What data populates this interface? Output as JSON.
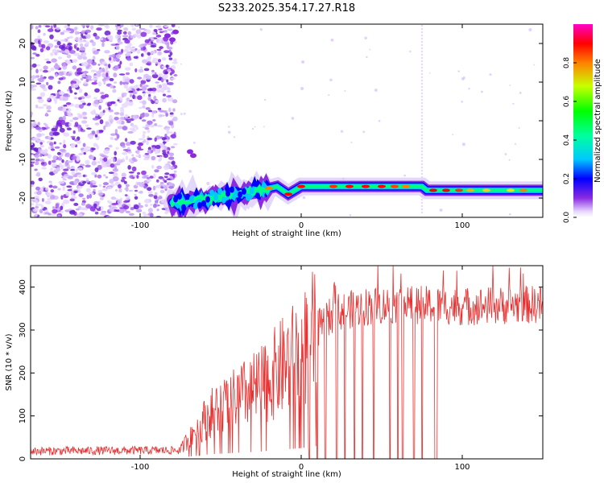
{
  "figure_title": "S233.2025.354.17.27.R18",
  "colors": {
    "snr_line": "#e83030",
    "speckle": "#8a2be2",
    "axis": "#000000"
  },
  "chart_data": [
    {
      "type": "heatmap",
      "title": "S233.2025.354.17.27.R18",
      "xlabel": "Height of straight line (km)",
      "ylabel": "Frequency (Hz)",
      "xlim": [
        -168,
        150
      ],
      "ylim": [
        -25,
        25
      ],
      "xticks": [
        -100,
        0,
        100
      ],
      "yticks": [
        -20,
        -10,
        0,
        10,
        20
      ],
      "colorbar": {
        "label": "Normalized spectral amplitude",
        "range": [
          0,
          1
        ],
        "ticks": [
          0.0,
          0.2,
          0.4,
          0.6,
          0.8
        ],
        "colormap": "hsv-rainbow (white at 0, magenta at 1)"
      },
      "noise_region_end_km": -80,
      "signal_track": {
        "start_km": -80,
        "frequency_hz": [
          {
            "x": -80,
            "y": -21
          },
          {
            "x": -70,
            "y": -21
          },
          {
            "x": -55,
            "y": -20
          },
          {
            "x": -40,
            "y": -19
          },
          {
            "x": -25,
            "y": -18
          },
          {
            "x": -15,
            "y": -17
          },
          {
            "x": -8,
            "y": -19
          },
          {
            "x": 0,
            "y": -17
          },
          {
            "x": 20,
            "y": -17
          },
          {
            "x": 50,
            "y": -17
          },
          {
            "x": 75,
            "y": -17
          },
          {
            "x": 78,
            "y": -18
          },
          {
            "x": 100,
            "y": -18
          },
          {
            "x": 120,
            "y": -18
          },
          {
            "x": 150,
            "y": -18
          }
        ]
      }
    },
    {
      "type": "line",
      "xlabel": "Height of straight line (km)",
      "ylabel": "SNR (10 * v/v)",
      "xlim": [
        -168,
        150
      ],
      "ylim": [
        0,
        450
      ],
      "xticks": [
        -100,
        0,
        100
      ],
      "yticks": [
        0,
        100,
        200,
        300,
        400
      ],
      "series": [
        {
          "name": "SNR",
          "envelope": [
            {
              "x": -168,
              "y": 18
            },
            {
              "x": -75,
              "y": 20
            },
            {
              "x": -68,
              "y": 60
            },
            {
              "x": -55,
              "y": 110
            },
            {
              "x": -40,
              "y": 140
            },
            {
              "x": -25,
              "y": 170
            },
            {
              "x": -10,
              "y": 220
            },
            {
              "x": 0,
              "y": 250
            },
            {
              "x": 10,
              "y": 300
            },
            {
              "x": 20,
              "y": 340
            },
            {
              "x": 40,
              "y": 355
            },
            {
              "x": 60,
              "y": 360
            },
            {
              "x": 80,
              "y": 358
            },
            {
              "x": 100,
              "y": 355
            },
            {
              "x": 150,
              "y": 360
            }
          ],
          "dropouts_to_zero_km": [
            5,
            10,
            15,
            22,
            27,
            33,
            38,
            45,
            55,
            60,
            63,
            70,
            75,
            83,
            84
          ]
        }
      ]
    }
  ]
}
